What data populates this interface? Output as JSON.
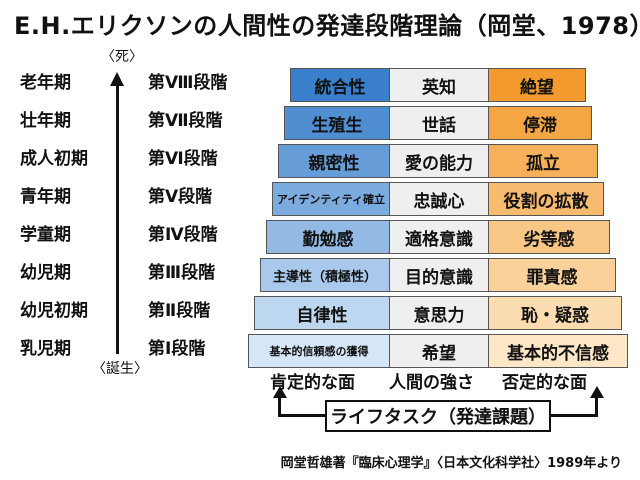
{
  "title": "E.H.エリクソンの人間性の発達段階理論（岡堂、1978）",
  "axis": {
    "top": "〈死〉",
    "bottom": "〈誕生〉"
  },
  "rows": [
    {
      "age": "老年期",
      "stage": "第Ⅷ段階",
      "virtue": "統合性",
      "strength": "英知",
      "crisis": "絶望"
    },
    {
      "age": "壮年期",
      "stage": "第Ⅶ段階",
      "virtue": "生殖生",
      "strength": "世話",
      "crisis": "停滞"
    },
    {
      "age": "成人初期",
      "stage": "第Ⅵ段階",
      "virtue": "親密性",
      "strength": "愛の能力",
      "crisis": "孤立"
    },
    {
      "age": "青年期",
      "stage": "第Ⅴ段階",
      "virtue": "アイデンティティ確立",
      "strength": "忠誠心",
      "crisis": "役割の拡散"
    },
    {
      "age": "学童期",
      "stage": "第Ⅳ段階",
      "virtue": "勤勉感",
      "strength": "適格意識",
      "crisis": "劣等感"
    },
    {
      "age": "幼児期",
      "stage": "第Ⅲ段階",
      "virtue": "主導性（積極性）",
      "strength": "目的意識",
      "crisis": "罪責感"
    },
    {
      "age": "幼児初期",
      "stage": "第Ⅱ段階",
      "virtue": "自律性",
      "strength": "意思力",
      "crisis": "恥・疑惑"
    },
    {
      "age": "乳児期",
      "stage": "第Ⅰ段階",
      "virtue": "基本的信頼感の獲得",
      "strength": "希望",
      "crisis": "基本的不信感"
    }
  ],
  "columns": {
    "positive": "肯定的な面",
    "strength": "人間の強さ",
    "negative": "否定的な面"
  },
  "task": "ライフタスク（発達課題）",
  "source": "岡堂哲雄著『臨床心理学』〈日本文化科学社〉1989年より",
  "colors": {
    "blue_top": "#3a7fcc",
    "blue_bottom": "#d4e6f7",
    "orange_top": "#f29a2e",
    "orange_bottom": "#fde7c6",
    "strength_bg": "#efefef"
  }
}
